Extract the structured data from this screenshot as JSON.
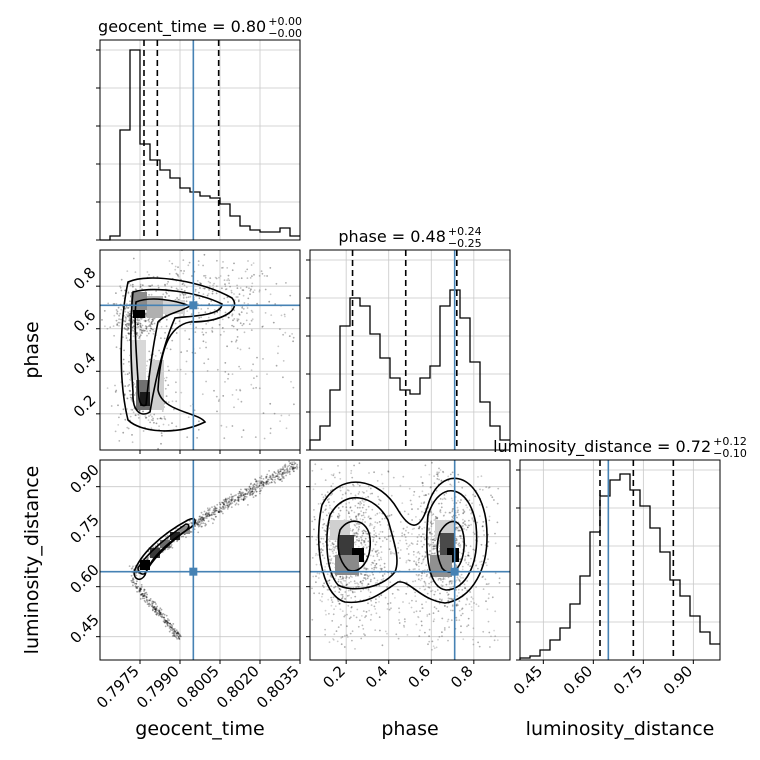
{
  "chart_data": {
    "type": "corner",
    "parameters": [
      "geocent_time",
      "phase",
      "luminosity_distance"
    ],
    "ranges": {
      "geocent_time": [
        0.796,
        0.8035
      ],
      "phase": [
        0.03,
        0.97
      ],
      "luminosity_distance": [
        0.38,
        0.98
      ]
    },
    "ticks": {
      "geocent_time": [
        "0.7975",
        "0.7990",
        "0.8005",
        "0.8020",
        "0.8035"
      ],
      "phase": [
        "0.2",
        "0.4",
        "0.6",
        "0.8"
      ],
      "luminosity_distance": [
        "0.45",
        "0.60",
        "0.75",
        "0.90"
      ]
    },
    "titles": {
      "geocent_time": {
        "label": "geocent_time = 0.80",
        "plus": "+0.00",
        "minus": "−0.00"
      },
      "phase": {
        "label": "phase = 0.48",
        "plus": "+0.24",
        "minus": "−0.25"
      },
      "luminosity_distance": {
        "label": "luminosity_distance = 0.72",
        "plus": "+0.12",
        "minus": "−0.10"
      }
    },
    "truths": {
      "geocent_time": 0.7995,
      "phase": 0.71,
      "luminosity_distance": 0.645
    },
    "quantiles": {
      "geocent_time": [
        0.79765,
        0.79815,
        0.80045
      ],
      "phase": [
        0.23,
        0.48,
        0.72
      ],
      "luminosity_distance": [
        0.62,
        0.72,
        0.84
      ]
    },
    "histograms": {
      "geocent_time": [
        0,
        0.02,
        0.55,
        0.95,
        0.48,
        0.4,
        0.35,
        0.31,
        0.26,
        0.24,
        0.22,
        0.21,
        0.18,
        0.12,
        0.07,
        0.05,
        0.04,
        0.04,
        0.06,
        0.02
      ],
      "phase": [
        0.05,
        0.12,
        0.3,
        0.62,
        0.76,
        0.72,
        0.58,
        0.46,
        0.36,
        0.3,
        0.28,
        0.36,
        0.42,
        0.72,
        0.8,
        0.66,
        0.44,
        0.24,
        0.12,
        0.05
      ],
      "luminosity_distance": [
        0.01,
        0.02,
        0.05,
        0.1,
        0.16,
        0.28,
        0.42,
        0.64,
        0.82,
        0.9,
        0.93,
        0.85,
        0.77,
        0.66,
        0.54,
        0.4,
        0.32,
        0.22,
        0.14,
        0.08
      ]
    },
    "colors": {
      "truth": "#4682b4",
      "hist": "#000000",
      "grid": "#c8c8c8"
    },
    "grid": true
  }
}
